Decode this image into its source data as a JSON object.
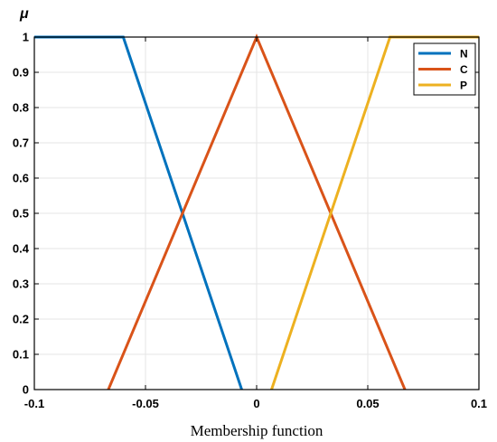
{
  "chart_data": {
    "type": "line",
    "title": "",
    "xlabel": "Membership function",
    "ylabel": "μ",
    "xlim": [
      -0.1,
      0.1
    ],
    "ylim": [
      0,
      1
    ],
    "x_ticks": [
      -0.1,
      -0.05,
      0,
      0.05,
      0.1
    ],
    "x_tick_labels": [
      "-0.1",
      "-0.05",
      "0",
      "0.05",
      "0.1"
    ],
    "y_ticks": [
      0,
      0.1,
      0.2,
      0.3,
      0.4,
      0.5,
      0.6,
      0.7,
      0.8,
      0.9,
      1
    ],
    "y_tick_labels": [
      "0",
      "0.1",
      "0.2",
      "0.3",
      "0.4",
      "0.5",
      "0.6",
      "0.7",
      "0.8",
      "0.9",
      "1"
    ],
    "grid": true,
    "legend_position": "top-right",
    "series": [
      {
        "name": "N",
        "color": "#0072BD",
        "x": [
          -0.1,
          -0.06,
          -0.0067
        ],
        "y": [
          1,
          1,
          0
        ]
      },
      {
        "name": "C",
        "color": "#D95319",
        "x": [
          -0.0667,
          0,
          0.0667
        ],
        "y": [
          0,
          1,
          0
        ]
      },
      {
        "name": "P",
        "color": "#EDB120",
        "x": [
          0.0067,
          0.06,
          0.1
        ],
        "y": [
          0,
          1,
          1
        ]
      }
    ]
  }
}
